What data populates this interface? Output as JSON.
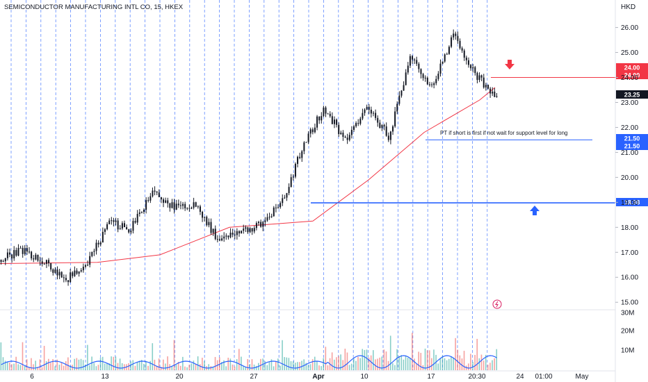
{
  "chart_data": {
    "type": "candlestick",
    "title": "SEMICONDUCTOR MANUFACTURING INTL CO, 15, HKEX",
    "currency": "HKD",
    "ylim": [
      14.7,
      26.6
    ],
    "y_ticks": [
      26.0,
      25.0,
      24.0,
      23.0,
      22.0,
      21.0,
      20.0,
      19.0,
      18.0,
      17.0,
      16.0,
      15.0
    ],
    "volume_ticks": [
      "30M",
      "20M",
      "10M"
    ],
    "x_tick_labels": [
      "6",
      "13",
      "20",
      "27",
      "Apr",
      "10",
      "17",
      "20:30",
      "24",
      "01:00",
      "May"
    ],
    "price_path": [
      {
        "label": "6",
        "value": 16.7
      },
      {
        "label": "",
        "value": 17.1
      },
      {
        "label": "",
        "value": 16.6
      },
      {
        "label": "13",
        "value": 15.9
      },
      {
        "label": "",
        "value": 16.5
      },
      {
        "label": "",
        "value": 18.2
      },
      {
        "label": "",
        "value": 17.9
      },
      {
        "label": "20",
        "value": 19.4
      },
      {
        "label": "",
        "value": 18.8
      },
      {
        "label": "",
        "value": 18.9
      },
      {
        "label": "27",
        "value": 17.6
      },
      {
        "label": "",
        "value": 17.8
      },
      {
        "label": "",
        "value": 18.1
      },
      {
        "label": "Apr",
        "value": 18.9
      },
      {
        "label": "",
        "value": 21.2
      },
      {
        "label": "10",
        "value": 22.8
      },
      {
        "label": "",
        "value": 21.4
      },
      {
        "label": "",
        "value": 22.9
      },
      {
        "label": "",
        "value": 21.6
      },
      {
        "label": "17",
        "value": 24.8
      },
      {
        "label": "",
        "value": 23.6
      },
      {
        "label": "20:30",
        "value": 25.7
      },
      {
        "label": "",
        "value": 24.1
      },
      {
        "label": "",
        "value": 23.25
      }
    ],
    "moving_average": [
      {
        "label": "6",
        "value": 16.55
      },
      {
        "label": "13",
        "value": 16.6
      },
      {
        "label": "20",
        "value": 16.9
      },
      {
        "label": "27",
        "value": 18.0
      },
      {
        "label": "Apr",
        "value": 18.25
      },
      {
        "label": "10",
        "value": 19.9
      },
      {
        "label": "17",
        "value": 21.8
      },
      {
        "label": "20:30",
        "value": 23.1
      },
      {
        "label": "",
        "value": 23.6
      }
    ],
    "levels": [
      {
        "name": "resistance",
        "value": 24.0,
        "color": "#f23645"
      },
      {
        "name": "price-target",
        "value": 21.5,
        "color": "#2962ff"
      },
      {
        "name": "support",
        "value": 18.98,
        "color": "#2962ff"
      }
    ],
    "annotation": "PT if short is first if not wait for support level for long",
    "price_tags": [
      {
        "text": "24.00",
        "color": "#f23645"
      },
      {
        "text": "24.00",
        "color": "#f23645"
      },
      {
        "text": "23.25",
        "color": "#131722"
      },
      {
        "text": "21.50",
        "color": "#2962ff"
      },
      {
        "text": "21.50",
        "color": "#2962ff"
      },
      {
        "text": "18.98",
        "color": "#2962ff"
      }
    ],
    "arrows": [
      {
        "direction": "down",
        "color": "#f23645"
      },
      {
        "direction": "up",
        "color": "#2962ff"
      }
    ],
    "colors": {
      "up": "#26a69a",
      "down": "#ef5350",
      "candle": "#131722",
      "ma": "#f23645",
      "volume_line": "#2962ff",
      "grid": "#2962ff"
    }
  }
}
